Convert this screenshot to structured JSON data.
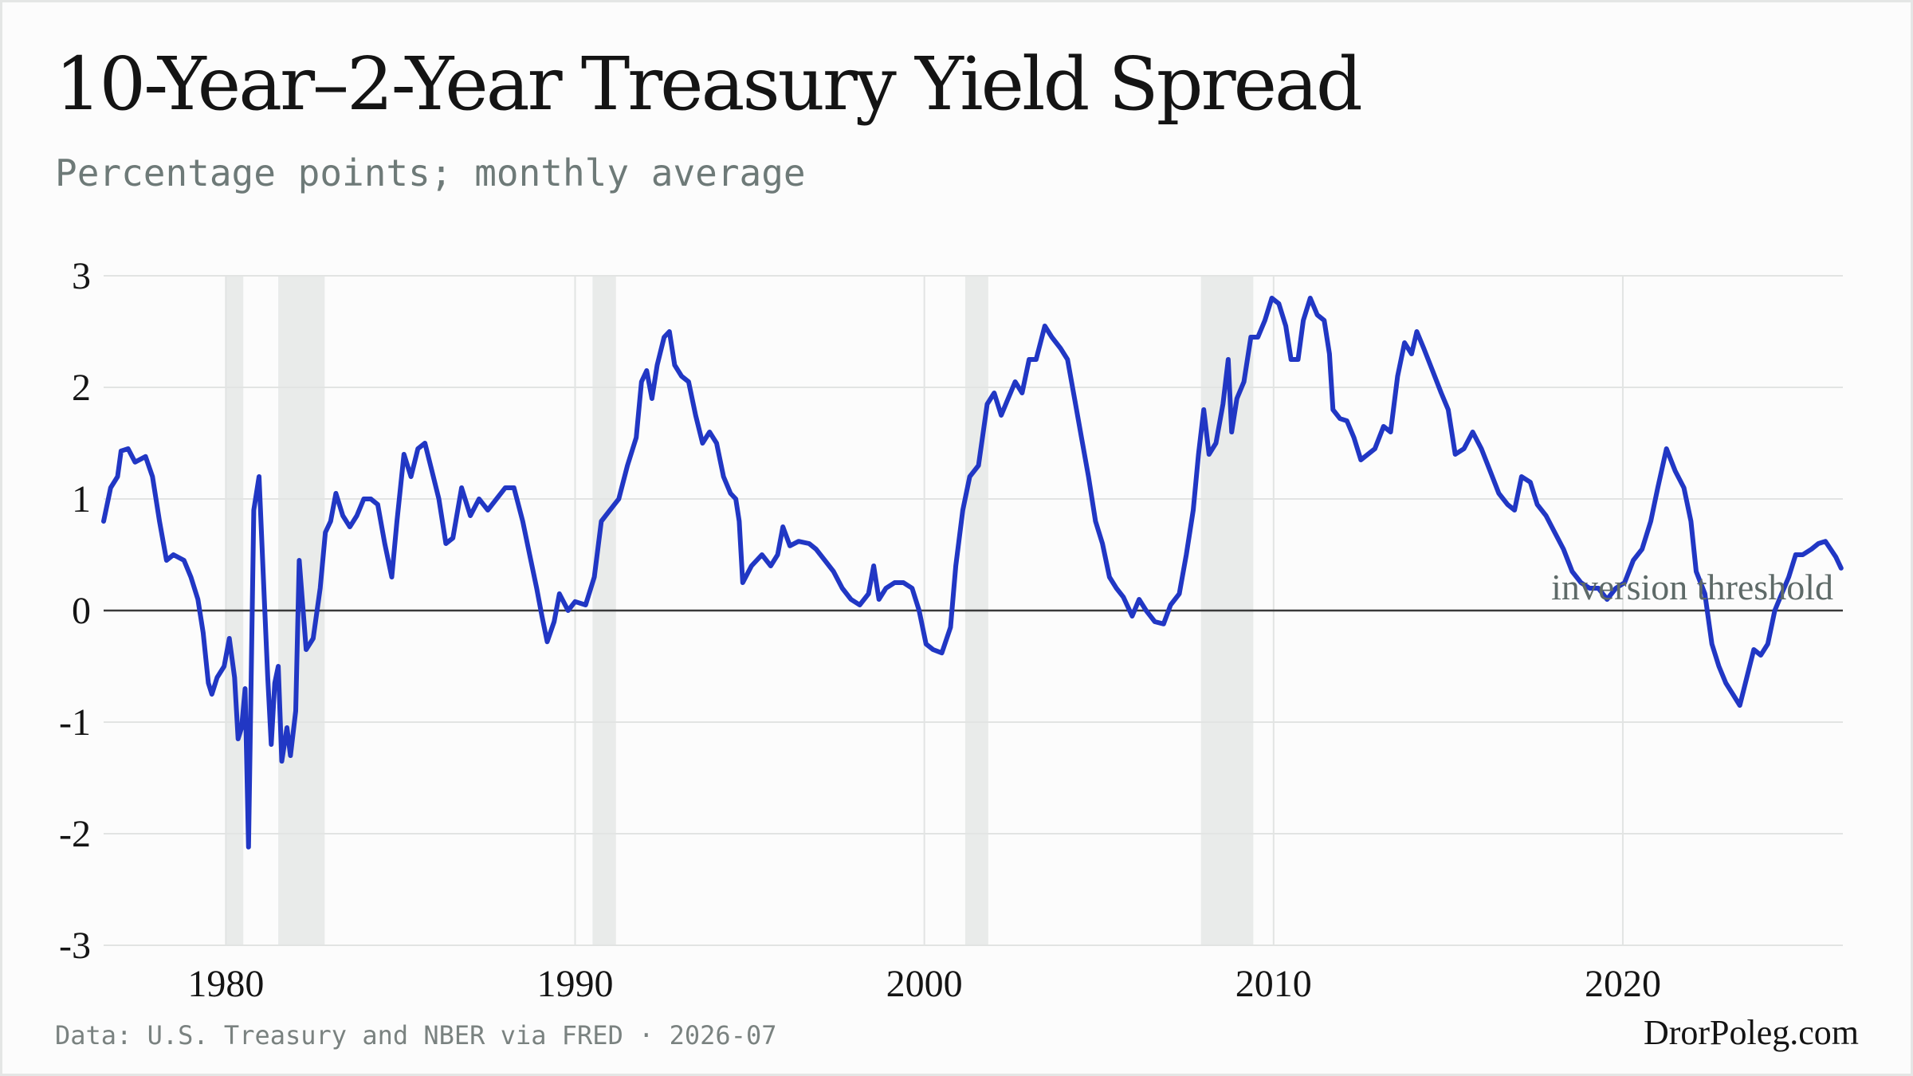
{
  "header": {
    "title": "10-Year–2-Year Treasury Yield Spread",
    "subtitle": "Percentage points; monthly average"
  },
  "footer": {
    "source": "Data: U.S. Treasury and NBER via FRED · 2026-07",
    "brand": "DrorPoleg.com"
  },
  "colors": {
    "line": "#2137c4",
    "recession": "#e9ebea",
    "grid": "#e2e4e3",
    "zero": "#3a3a3a"
  },
  "chart_data": {
    "type": "line",
    "title": "10-Year–2-Year Treasury Yield Spread",
    "subtitle": "Percentage points; monthly average",
    "xlabel": "",
    "ylabel": "",
    "xlim": [
      1976.5,
      2026.3
    ],
    "ylim": [
      -3,
      3
    ],
    "x_ticks": [
      1980,
      1990,
      2000,
      2010,
      2020
    ],
    "y_ticks": [
      3,
      2,
      1,
      0,
      -1,
      -2,
      -3
    ],
    "grid": true,
    "legend": "none",
    "reference_line": {
      "y": 0,
      "label": "inversion threshold"
    },
    "recessions": [
      [
        1980.0,
        1980.5
      ],
      [
        1981.5,
        1982.83
      ],
      [
        1990.5,
        1991.17
      ],
      [
        2001.17,
        2001.83
      ],
      [
        2007.92,
        2009.42
      ]
    ],
    "series": [
      {
        "points": [
          [
            1976.5,
            0.8
          ],
          [
            1976.7,
            1.1
          ],
          [
            1976.9,
            1.2
          ],
          [
            1977.0,
            1.43
          ],
          [
            1977.2,
            1.45
          ],
          [
            1977.4,
            1.33
          ],
          [
            1977.7,
            1.38
          ],
          [
            1977.9,
            1.2
          ],
          [
            1978.1,
            0.8
          ],
          [
            1978.3,
            0.45
          ],
          [
            1978.5,
            0.5
          ],
          [
            1978.8,
            0.45
          ],
          [
            1979.0,
            0.3
          ],
          [
            1979.2,
            0.1
          ],
          [
            1979.35,
            -0.2
          ],
          [
            1979.5,
            -0.65
          ],
          [
            1979.6,
            -0.75
          ],
          [
            1979.75,
            -0.6
          ],
          [
            1979.95,
            -0.5
          ],
          [
            1980.1,
            -0.25
          ],
          [
            1980.25,
            -0.6
          ],
          [
            1980.35,
            -1.15
          ],
          [
            1980.45,
            -1.05
          ],
          [
            1980.55,
            -0.7
          ],
          [
            1980.65,
            -2.12
          ],
          [
            1980.8,
            0.9
          ],
          [
            1980.95,
            1.2
          ],
          [
            1981.1,
            0.1
          ],
          [
            1981.2,
            -0.6
          ],
          [
            1981.3,
            -1.2
          ],
          [
            1981.4,
            -0.65
          ],
          [
            1981.5,
            -0.5
          ],
          [
            1981.6,
            -1.35
          ],
          [
            1981.75,
            -1.05
          ],
          [
            1981.85,
            -1.3
          ],
          [
            1982.0,
            -0.9
          ],
          [
            1982.1,
            0.45
          ],
          [
            1982.3,
            -0.35
          ],
          [
            1982.5,
            -0.25
          ],
          [
            1982.7,
            0.2
          ],
          [
            1982.85,
            0.7
          ],
          [
            1983.0,
            0.8
          ],
          [
            1983.15,
            1.05
          ],
          [
            1983.35,
            0.85
          ],
          [
            1983.55,
            0.75
          ],
          [
            1983.75,
            0.85
          ],
          [
            1983.95,
            1.0
          ],
          [
            1984.15,
            1.0
          ],
          [
            1984.35,
            0.95
          ],
          [
            1984.55,
            0.6
          ],
          [
            1984.75,
            0.3
          ],
          [
            1984.9,
            0.8
          ],
          [
            1985.1,
            1.4
          ],
          [
            1985.3,
            1.2
          ],
          [
            1985.5,
            1.45
          ],
          [
            1985.7,
            1.5
          ],
          [
            1985.9,
            1.25
          ],
          [
            1986.1,
            1.0
          ],
          [
            1986.3,
            0.6
          ],
          [
            1986.5,
            0.65
          ],
          [
            1986.75,
            1.1
          ],
          [
            1987.0,
            0.85
          ],
          [
            1987.25,
            1.0
          ],
          [
            1987.5,
            0.9
          ],
          [
            1987.75,
            1.0
          ],
          [
            1988.0,
            1.1
          ],
          [
            1988.25,
            1.1
          ],
          [
            1988.5,
            0.8
          ],
          [
            1988.7,
            0.5
          ],
          [
            1988.9,
            0.2
          ],
          [
            1989.05,
            -0.05
          ],
          [
            1989.2,
            -0.28
          ],
          [
            1989.4,
            -0.1
          ],
          [
            1989.55,
            0.15
          ],
          [
            1989.8,
            0.0
          ],
          [
            1990.0,
            0.08
          ],
          [
            1990.3,
            0.05
          ],
          [
            1990.55,
            0.3
          ],
          [
            1990.75,
            0.8
          ],
          [
            1991.0,
            0.9
          ],
          [
            1991.25,
            1.0
          ],
          [
            1991.5,
            1.3
          ],
          [
            1991.75,
            1.55
          ],
          [
            1991.9,
            2.05
          ],
          [
            1992.05,
            2.15
          ],
          [
            1992.2,
            1.9
          ],
          [
            1992.35,
            2.2
          ],
          [
            1992.55,
            2.45
          ],
          [
            1992.7,
            2.5
          ],
          [
            1992.85,
            2.2
          ],
          [
            1993.05,
            2.1
          ],
          [
            1993.25,
            2.05
          ],
          [
            1993.45,
            1.75
          ],
          [
            1993.65,
            1.5
          ],
          [
            1993.85,
            1.6
          ],
          [
            1994.05,
            1.5
          ],
          [
            1994.25,
            1.2
          ],
          [
            1994.45,
            1.05
          ],
          [
            1994.6,
            1.0
          ],
          [
            1994.7,
            0.8
          ],
          [
            1994.8,
            0.25
          ],
          [
            1995.05,
            0.4
          ],
          [
            1995.35,
            0.5
          ],
          [
            1995.6,
            0.4
          ],
          [
            1995.8,
            0.5
          ],
          [
            1995.95,
            0.75
          ],
          [
            1996.15,
            0.58
          ],
          [
            1996.4,
            0.62
          ],
          [
            1996.7,
            0.6
          ],
          [
            1996.9,
            0.55
          ],
          [
            1997.15,
            0.45
          ],
          [
            1997.4,
            0.35
          ],
          [
            1997.65,
            0.2
          ],
          [
            1997.9,
            0.1
          ],
          [
            1998.15,
            0.05
          ],
          [
            1998.4,
            0.15
          ],
          [
            1998.55,
            0.4
          ],
          [
            1998.7,
            0.1
          ],
          [
            1998.9,
            0.2
          ],
          [
            1999.15,
            0.25
          ],
          [
            1999.4,
            0.25
          ],
          [
            1999.65,
            0.2
          ],
          [
            1999.85,
            0.0
          ],
          [
            2000.05,
            -0.3
          ],
          [
            2000.25,
            -0.35
          ],
          [
            2000.5,
            -0.38
          ],
          [
            2000.75,
            -0.15
          ],
          [
            2000.9,
            0.4
          ],
          [
            2001.1,
            0.9
          ],
          [
            2001.3,
            1.2
          ],
          [
            2001.55,
            1.3
          ],
          [
            2001.8,
            1.85
          ],
          [
            2002.0,
            1.95
          ],
          [
            2002.2,
            1.75
          ],
          [
            2002.4,
            1.9
          ],
          [
            2002.6,
            2.05
          ],
          [
            2002.8,
            1.95
          ],
          [
            2003.0,
            2.25
          ],
          [
            2003.2,
            2.25
          ],
          [
            2003.45,
            2.55
          ],
          [
            2003.65,
            2.45
          ],
          [
            2003.9,
            2.35
          ],
          [
            2004.1,
            2.25
          ],
          [
            2004.3,
            1.9
          ],
          [
            2004.5,
            1.55
          ],
          [
            2004.7,
            1.2
          ],
          [
            2004.9,
            0.8
          ],
          [
            2005.1,
            0.6
          ],
          [
            2005.3,
            0.3
          ],
          [
            2005.5,
            0.2
          ],
          [
            2005.7,
            0.12
          ],
          [
            2005.95,
            -0.05
          ],
          [
            2006.15,
            0.1
          ],
          [
            2006.35,
            0.0
          ],
          [
            2006.6,
            -0.1
          ],
          [
            2006.85,
            -0.12
          ],
          [
            2007.05,
            0.05
          ],
          [
            2007.3,
            0.15
          ],
          [
            2007.5,
            0.5
          ],
          [
            2007.7,
            0.9
          ],
          [
            2007.85,
            1.4
          ],
          [
            2008.0,
            1.8
          ],
          [
            2008.15,
            1.4
          ],
          [
            2008.35,
            1.5
          ],
          [
            2008.55,
            1.85
          ],
          [
            2008.7,
            2.25
          ],
          [
            2008.8,
            1.6
          ],
          [
            2008.95,
            1.9
          ],
          [
            2009.15,
            2.05
          ],
          [
            2009.35,
            2.45
          ],
          [
            2009.55,
            2.45
          ],
          [
            2009.75,
            2.6
          ],
          [
            2009.95,
            2.8
          ],
          [
            2010.15,
            2.75
          ],
          [
            2010.35,
            2.55
          ],
          [
            2010.5,
            2.25
          ],
          [
            2010.7,
            2.25
          ],
          [
            2010.85,
            2.6
          ],
          [
            2011.05,
            2.8
          ],
          [
            2011.25,
            2.65
          ],
          [
            2011.45,
            2.6
          ],
          [
            2011.6,
            2.3
          ],
          [
            2011.7,
            1.8
          ],
          [
            2011.9,
            1.72
          ],
          [
            2012.1,
            1.7
          ],
          [
            2012.3,
            1.55
          ],
          [
            2012.5,
            1.35
          ],
          [
            2012.7,
            1.4
          ],
          [
            2012.9,
            1.45
          ],
          [
            2013.15,
            1.65
          ],
          [
            2013.35,
            1.6
          ],
          [
            2013.55,
            2.1
          ],
          [
            2013.75,
            2.4
          ],
          [
            2013.95,
            2.3
          ],
          [
            2014.1,
            2.5
          ],
          [
            2014.3,
            2.35
          ],
          [
            2014.55,
            2.15
          ],
          [
            2014.8,
            1.95
          ],
          [
            2015.0,
            1.8
          ],
          [
            2015.2,
            1.4
          ],
          [
            2015.45,
            1.45
          ],
          [
            2015.7,
            1.6
          ],
          [
            2015.95,
            1.45
          ],
          [
            2016.2,
            1.25
          ],
          [
            2016.45,
            1.05
          ],
          [
            2016.7,
            0.95
          ],
          [
            2016.9,
            0.9
          ],
          [
            2017.1,
            1.2
          ],
          [
            2017.35,
            1.15
          ],
          [
            2017.55,
            0.95
          ],
          [
            2017.8,
            0.85
          ],
          [
            2018.05,
            0.7
          ],
          [
            2018.3,
            0.55
          ],
          [
            2018.55,
            0.35
          ],
          [
            2018.8,
            0.25
          ],
          [
            2019.05,
            0.2
          ],
          [
            2019.3,
            0.2
          ],
          [
            2019.55,
            0.1
          ],
          [
            2019.8,
            0.2
          ],
          [
            2020.05,
            0.25
          ],
          [
            2020.3,
            0.45
          ],
          [
            2020.55,
            0.55
          ],
          [
            2020.8,
            0.8
          ],
          [
            2021.0,
            1.1
          ],
          [
            2021.25,
            1.45
          ],
          [
            2021.5,
            1.25
          ],
          [
            2021.75,
            1.1
          ],
          [
            2021.95,
            0.8
          ],
          [
            2022.1,
            0.35
          ],
          [
            2022.35,
            0.15
          ],
          [
            2022.55,
            -0.3
          ],
          [
            2022.75,
            -0.5
          ],
          [
            2022.95,
            -0.65
          ],
          [
            2023.15,
            -0.75
          ],
          [
            2023.35,
            -0.85
          ],
          [
            2023.55,
            -0.6
          ],
          [
            2023.75,
            -0.35
          ],
          [
            2023.95,
            -0.4
          ],
          [
            2024.15,
            -0.3
          ],
          [
            2024.35,
            0.0
          ],
          [
            2024.55,
            0.15
          ],
          [
            2024.75,
            0.3
          ],
          [
            2024.95,
            0.5
          ],
          [
            2025.15,
            0.5
          ],
          [
            2025.4,
            0.55
          ],
          [
            2025.6,
            0.6
          ],
          [
            2025.8,
            0.62
          ],
          [
            2025.95,
            0.55
          ],
          [
            2026.1,
            0.48
          ],
          [
            2026.25,
            0.38
          ]
        ]
      }
    ]
  }
}
